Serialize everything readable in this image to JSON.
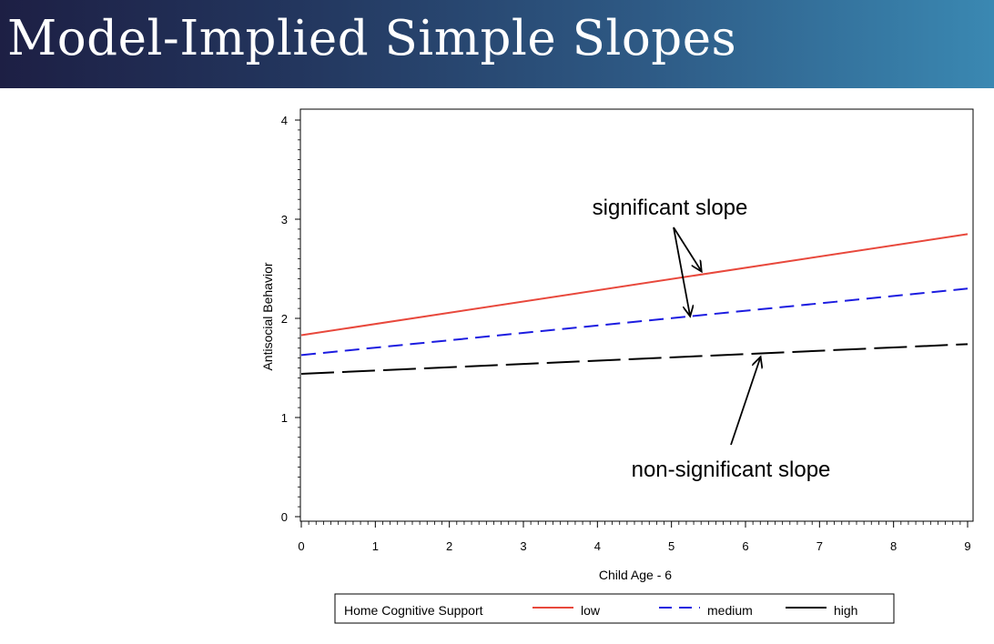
{
  "slide": {
    "title": "Model-Implied Simple Slopes",
    "colors": {
      "banner_start": "#1d1f44",
      "banner_end": "#3a88b2"
    }
  },
  "chart_data": {
    "type": "line",
    "xlabel": "Child Age - 6",
    "ylabel": "Antisocial Behavior",
    "xlim": [
      0,
      9
    ],
    "ylim": [
      0,
      4
    ],
    "x_ticks": [
      "0",
      "1",
      "2",
      "3",
      "4",
      "5",
      "6",
      "7",
      "8",
      "9"
    ],
    "y_ticks": [
      "0",
      "1",
      "2",
      "3",
      "4"
    ],
    "grid": false,
    "legend": {
      "title": "Home Cognitive Support",
      "position": "bottom"
    },
    "series": [
      {
        "name": "low",
        "x": [
          0,
          9
        ],
        "y": [
          1.83,
          2.85
        ],
        "color": "#e8483c",
        "dash": "solid"
      },
      {
        "name": "medium",
        "x": [
          0,
          9
        ],
        "y": [
          1.63,
          2.3
        ],
        "color": "#1c1ce0",
        "dash": "dashed"
      },
      {
        "name": "high",
        "x": [
          0,
          9
        ],
        "y": [
          1.44,
          1.74
        ],
        "color": "#000000",
        "dash": "longdash"
      }
    ],
    "annotations": [
      {
        "text": "significant slope",
        "arrows_to": [
          {
            "x": 5.4,
            "y": 2.48
          },
          {
            "x": 5.25,
            "y": 2.03
          }
        ]
      },
      {
        "text": "non-significant slope",
        "arrows_to": [
          {
            "x": 6.2,
            "y": 1.64
          }
        ]
      }
    ]
  }
}
